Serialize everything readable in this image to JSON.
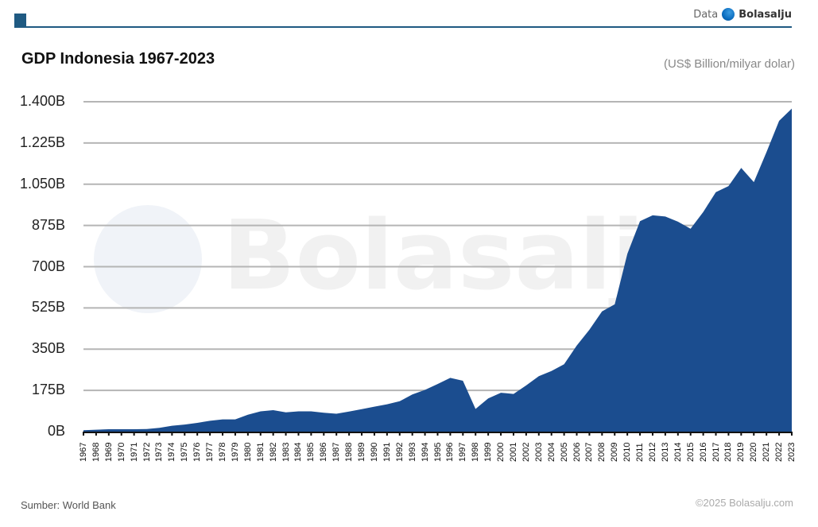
{
  "header": {
    "brand_prefix": "Data",
    "brand_name": "Bolasalju",
    "accent_color": "#1f5a82"
  },
  "chart_title": "GDP Indonesia 1967-2023",
  "unit_label": "(US$ Billion/milyar dolar)",
  "watermark": "Bolasalju",
  "footer": {
    "source": "Sumber: World Bank",
    "copyright": "©2025 Bolasalju.com"
  },
  "chart_data": {
    "type": "area",
    "title": "GDP Indonesia 1967-2023",
    "subtitle": "(US$ Billion/milyar dolar)",
    "xlabel": "",
    "ylabel": "US$ Billion",
    "ylim": [
      0,
      1400
    ],
    "yticks": [
      0,
      175,
      350,
      525,
      700,
      875,
      1050,
      1225,
      1400
    ],
    "ytick_labels": [
      "0B",
      "175B",
      "350B",
      "525B",
      "700B",
      "875B",
      "1.050B",
      "1.225B",
      "1.400B"
    ],
    "grid": true,
    "legend": "none",
    "fill_color": "#1b4d8f",
    "x": [
      1967,
      1968,
      1969,
      1970,
      1971,
      1972,
      1973,
      1974,
      1975,
      1976,
      1977,
      1978,
      1979,
      1980,
      1981,
      1982,
      1983,
      1984,
      1985,
      1986,
      1987,
      1988,
      1989,
      1990,
      1991,
      1992,
      1993,
      1994,
      1995,
      1996,
      1997,
      1998,
      1999,
      2000,
      2001,
      2002,
      2003,
      2004,
      2005,
      2006,
      2007,
      2008,
      2009,
      2010,
      2011,
      2012,
      2013,
      2014,
      2015,
      2016,
      2017,
      2018,
      2019,
      2020,
      2021,
      2022,
      2023
    ],
    "values": [
      6,
      8,
      10,
      10,
      10,
      11,
      16,
      25,
      30,
      37,
      46,
      52,
      52,
      72,
      86,
      91,
      82,
      86,
      86,
      80,
      76,
      85,
      95,
      106,
      116,
      129,
      158,
      177,
      202,
      228,
      216,
      96,
      141,
      165,
      160,
      196,
      235,
      257,
      286,
      365,
      432,
      510,
      540,
      755,
      893,
      918,
      913,
      891,
      861,
      932,
      1016,
      1042,
      1119,
      1059,
      1186,
      1319,
      1371
    ]
  }
}
